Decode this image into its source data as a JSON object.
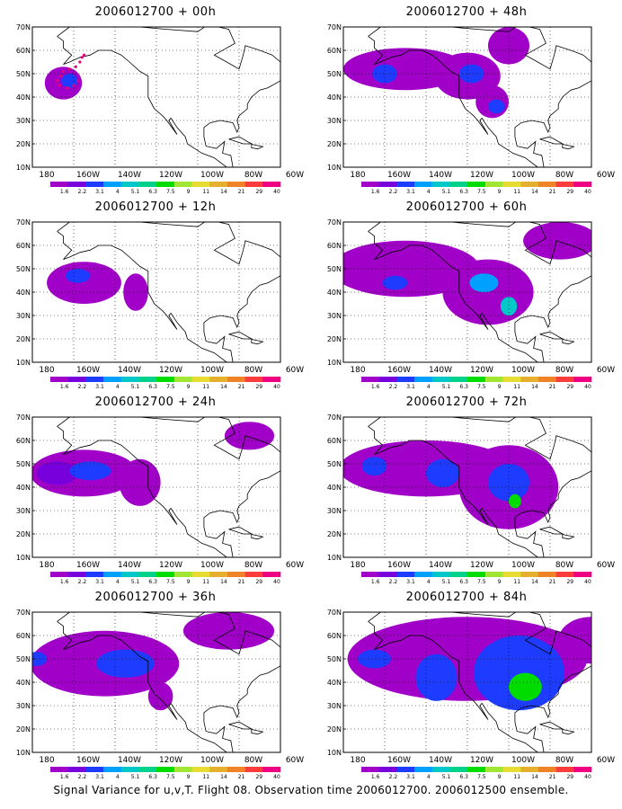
{
  "lat_labels": [
    "70N",
    "60N",
    "50N",
    "40N",
    "30N",
    "20N",
    "10N"
  ],
  "lon_labels": [
    "180",
    "160W",
    "140W",
    "120W",
    "100W",
    "80W",
    "60W"
  ],
  "colorbar": {
    "labels": [
      "1.6",
      "2.2",
      "3.1",
      "4",
      "5.1",
      "6.3",
      "7.5",
      "9",
      "11",
      "14",
      "21",
      "29",
      "40"
    ],
    "colors": [
      "#a000c8",
      "#7800dc",
      "#1e3cff",
      "#00a0ff",
      "#00c8c8",
      "#00d28c",
      "#00dc00",
      "#a0e632",
      "#e6dc32",
      "#e6af2d",
      "#f08228",
      "#fa3c3c",
      "#f00082"
    ]
  },
  "panels": [
    {
      "title": "2006012700 + 00h"
    },
    {
      "title": "2006012700 + 48h"
    },
    {
      "title": "2006012700 + 12h"
    },
    {
      "title": "2006012700 + 60h"
    },
    {
      "title": "2006012700 + 24h"
    },
    {
      "title": "2006012700 + 72h"
    },
    {
      "title": "2006012700 + 36h"
    },
    {
      "title": "2006012700 + 84h"
    }
  ],
  "caption": "Signal Variance for u,v,T. Flight 08. Observation time 2006012700. 2006012500 ensemble."
}
